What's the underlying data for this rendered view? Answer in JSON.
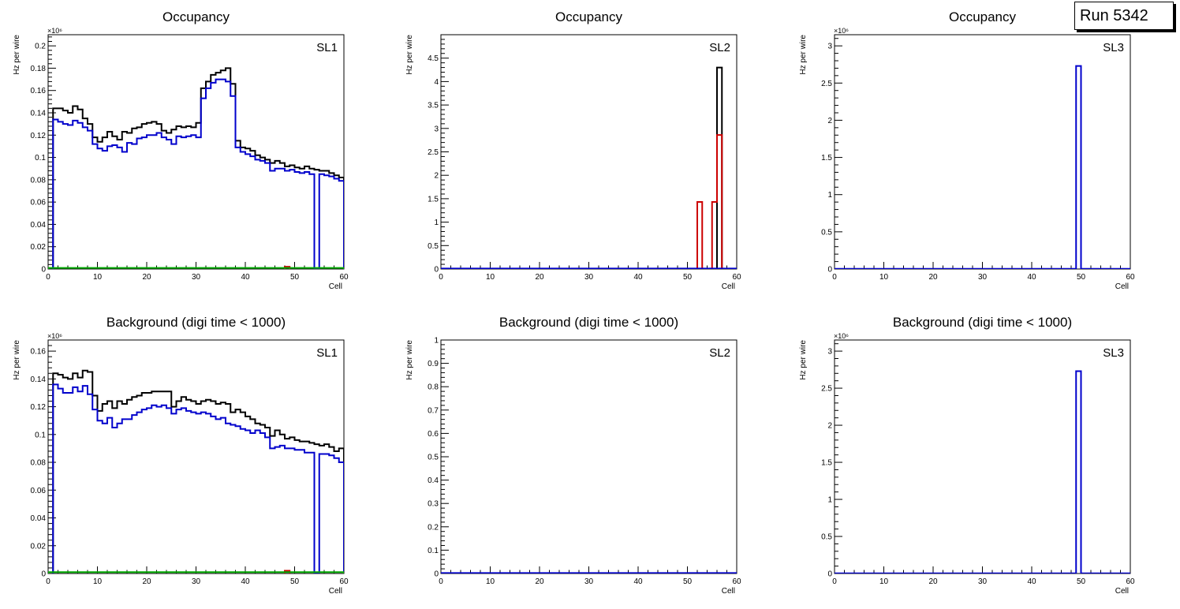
{
  "run_label": "Run 5342",
  "colors": {
    "total": "#000000",
    "blue": "#0000cc",
    "red": "#cc0000",
    "green": "#00aa00"
  },
  "chart_data": [
    {
      "type": "histogram",
      "title": "Occupancy",
      "label": "SL1",
      "xlabel": "Cell",
      "ylabel": "Hz per wire",
      "exponent": "×10⁶",
      "xlim": [
        0,
        60
      ],
      "ylim": [
        0,
        0.21
      ],
      "xticks": [
        "0",
        "10",
        "20",
        "30",
        "40",
        "50",
        "60"
      ],
      "yticks": [
        "0",
        "0.02",
        "0.04",
        "0.06",
        "0.08",
        "0.1",
        "0.12",
        "0.14",
        "0.16",
        "0.18",
        "0.2"
      ],
      "series": [
        {
          "name": "total",
          "color": "#000000",
          "start": 1,
          "values": [
            0.144,
            0.144,
            0.142,
            0.14,
            0.146,
            0.143,
            0.135,
            0.13,
            0.118,
            0.114,
            0.118,
            0.123,
            0.119,
            0.116,
            0.123,
            0.122,
            0.126,
            0.127,
            0.13,
            0.131,
            0.132,
            0.13,
            0.124,
            0.122,
            0.125,
            0.128,
            0.127,
            0.128,
            0.127,
            0.131,
            0.162,
            0.168,
            0.174,
            0.176,
            0.178,
            0.18,
            0.166,
            0.115,
            0.109,
            0.108,
            0.106,
            0.102,
            0.1,
            0.098,
            0.095,
            0.097,
            0.095,
            0.092,
            0.093,
            0.091,
            0.09,
            0.092,
            0.09,
            0.089,
            0.088,
            0.088,
            0.086,
            0.084,
            0.082
          ]
        },
        {
          "name": "blue",
          "color": "#0000cc",
          "start": 1,
          "values": [
            0.134,
            0.132,
            0.13,
            0.129,
            0.133,
            0.131,
            0.127,
            0.124,
            0.112,
            0.108,
            0.106,
            0.11,
            0.111,
            0.109,
            0.105,
            0.113,
            0.112,
            0.117,
            0.118,
            0.12,
            0.12,
            0.122,
            0.118,
            0.116,
            0.112,
            0.119,
            0.118,
            0.119,
            0.12,
            0.118,
            0.153,
            0.162,
            0.167,
            0.17,
            0.17,
            0.168,
            0.155,
            0.109,
            0.105,
            0.103,
            0.101,
            0.098,
            0.097,
            0.095,
            0.088,
            0.09,
            0.09,
            0.088,
            0.089,
            0.087,
            0.086,
            0.087,
            0.085,
            0.0,
            0.085,
            0.084,
            0.083,
            0.081,
            0.079
          ]
        },
        {
          "name": "red",
          "color": "#cc0000",
          "start": 48,
          "values": [
            0.002
          ]
        },
        {
          "name": "green",
          "color": "#00aa00",
          "start": 0,
          "values": [
            0.001,
            0.001,
            0.001,
            0.001,
            0.001,
            0.001,
            0.001,
            0.001,
            0.001,
            0.001,
            0.001,
            0.001,
            0.001,
            0.001,
            0.001,
            0.001,
            0.001,
            0.001,
            0.001,
            0.001,
            0.001,
            0.001,
            0.001,
            0.001,
            0.001,
            0.001,
            0.001,
            0.001,
            0.001,
            0.001,
            0.001,
            0.001,
            0.001,
            0.001,
            0.001,
            0.001,
            0.001,
            0.001,
            0.001,
            0.001,
            0.001,
            0.001,
            0.001,
            0.001,
            0.001,
            0.001,
            0.001,
            0.001,
            0.001,
            0.001,
            0.001,
            0.001,
            0.001,
            0.001,
            0.001,
            0.001,
            0.001,
            0.001,
            0.001,
            0.001
          ]
        }
      ]
    },
    {
      "type": "histogram",
      "title": "Occupancy",
      "label": "SL2",
      "xlabel": "Cell",
      "ylabel": "Hz per wire",
      "exponent": "",
      "xlim": [
        0,
        60
      ],
      "ylim": [
        0,
        5
      ],
      "xticks": [
        "0",
        "10",
        "20",
        "30",
        "40",
        "50",
        "60"
      ],
      "yticks": [
        "0",
        "0.5",
        "1",
        "1.5",
        "2",
        "2.5",
        "3",
        "3.5",
        "4",
        "4.5"
      ],
      "series": [
        {
          "name": "total",
          "color": "#000000",
          "start": 56,
          "values": [
            4.3
          ]
        },
        {
          "name": "red",
          "color": "#cc0000",
          "start": 52,
          "values": [
            1.43,
            0,
            0,
            1.43,
            2.86
          ]
        },
        {
          "name": "blue",
          "color": "#0000cc",
          "start": 0,
          "values": [
            0.01,
            0.01,
            0.01,
            0.01,
            0.01,
            0.01,
            0.01,
            0.01,
            0.01,
            0.01,
            0.01,
            0.01,
            0.01,
            0.01,
            0.01,
            0.01,
            0.01,
            0.01,
            0.01,
            0.01,
            0.01,
            0.01,
            0.01,
            0.01,
            0.01,
            0.01,
            0.01,
            0.01,
            0.01,
            0.01,
            0.01,
            0.01,
            0.01,
            0.01,
            0.01,
            0.01,
            0.01,
            0.01,
            0.01,
            0.01,
            0.01,
            0.01,
            0.01,
            0.01,
            0.01,
            0.01,
            0.01,
            0.01,
            0.01,
            0.01,
            0.01,
            0.01,
            0.01,
            0.01,
            0.01,
            0.01,
            0.01,
            0.01,
            0.01,
            0.01
          ]
        }
      ]
    },
    {
      "type": "histogram",
      "title": "Occupancy",
      "label": "SL3",
      "xlabel": "Cell",
      "ylabel": "Hz per wire",
      "exponent": "×10⁶",
      "xlim": [
        0,
        60
      ],
      "ylim": [
        0,
        3.15
      ],
      "xticks": [
        "0",
        "10",
        "20",
        "30",
        "40",
        "50",
        "60"
      ],
      "yticks": [
        "0",
        "0.5",
        "1",
        "1.5",
        "2",
        "2.5",
        "3"
      ],
      "series": [
        {
          "name": "blue",
          "color": "#0000cc",
          "start": 0,
          "values": [
            0.003,
            0.003,
            0.003,
            0.003,
            0.003,
            0.003,
            0.003,
            0.003,
            0.003,
            0.003,
            0.003,
            0.003,
            0.003,
            0.003,
            0.003,
            0.003,
            0.003,
            0.003,
            0.003,
            0.003,
            0.003,
            0.003,
            0.003,
            0.003,
            0.003,
            0.003,
            0.003,
            0.003,
            0.003,
            0.003,
            0.003,
            0.003,
            0.003,
            0.003,
            0.003,
            0.003,
            0.003,
            0.003,
            0.003,
            0.003,
            0.003,
            0.003,
            0.003,
            0.003,
            0.003,
            0.003,
            0.003,
            0.003,
            0.003,
            2.73,
            0.003,
            0.003,
            0.003,
            0.003,
            0.003,
            0.003,
            0.003,
            0.003,
            0.003,
            0.003
          ]
        }
      ]
    },
    {
      "type": "histogram",
      "title": "Background (digi time < 1000)",
      "label": "SL1",
      "xlabel": "Cell",
      "ylabel": "Hz per wire",
      "exponent": "×10⁶",
      "xlim": [
        0,
        60
      ],
      "ylim": [
        0,
        0.168
      ],
      "xticks": [
        "0",
        "10",
        "20",
        "30",
        "40",
        "50",
        "60"
      ],
      "yticks": [
        "0",
        "0.02",
        "0.04",
        "0.06",
        "0.08",
        "0.1",
        "0.12",
        "0.14",
        "0.16"
      ],
      "series": [
        {
          "name": "total",
          "color": "#000000",
          "start": 1,
          "values": [
            0.144,
            0.143,
            0.141,
            0.14,
            0.144,
            0.141,
            0.146,
            0.145,
            0.128,
            0.117,
            0.122,
            0.124,
            0.119,
            0.124,
            0.122,
            0.125,
            0.127,
            0.128,
            0.13,
            0.13,
            0.131,
            0.131,
            0.131,
            0.131,
            0.12,
            0.124,
            0.127,
            0.125,
            0.124,
            0.122,
            0.124,
            0.125,
            0.124,
            0.122,
            0.123,
            0.122,
            0.116,
            0.118,
            0.116,
            0.113,
            0.111,
            0.108,
            0.107,
            0.105,
            0.099,
            0.103,
            0.1,
            0.097,
            0.098,
            0.096,
            0.095,
            0.095,
            0.094,
            0.093,
            0.092,
            0.093,
            0.091,
            0.088,
            0.09
          ]
        },
        {
          "name": "blue",
          "color": "#0000cc",
          "start": 1,
          "values": [
            0.136,
            0.133,
            0.13,
            0.13,
            0.134,
            0.131,
            0.135,
            0.129,
            0.118,
            0.11,
            0.108,
            0.112,
            0.105,
            0.108,
            0.111,
            0.111,
            0.114,
            0.116,
            0.118,
            0.119,
            0.121,
            0.12,
            0.121,
            0.119,
            0.115,
            0.118,
            0.119,
            0.117,
            0.116,
            0.115,
            0.116,
            0.115,
            0.113,
            0.111,
            0.112,
            0.108,
            0.107,
            0.106,
            0.104,
            0.103,
            0.101,
            0.103,
            0.101,
            0.098,
            0.09,
            0.091,
            0.092,
            0.09,
            0.09,
            0.089,
            0.089,
            0.087,
            0.087,
            0.0,
            0.086,
            0.086,
            0.085,
            0.083,
            0.08
          ]
        },
        {
          "name": "red",
          "color": "#cc0000",
          "start": 48,
          "values": [
            0.002
          ]
        },
        {
          "name": "green",
          "color": "#00aa00",
          "start": 0,
          "values": [
            0.001,
            0.001,
            0.001,
            0.001,
            0.001,
            0.001,
            0.001,
            0.001,
            0.001,
            0.001,
            0.001,
            0.001,
            0.001,
            0.001,
            0.001,
            0.001,
            0.001,
            0.001,
            0.001,
            0.001,
            0.001,
            0.001,
            0.001,
            0.001,
            0.001,
            0.001,
            0.001,
            0.001,
            0.001,
            0.001,
            0.001,
            0.001,
            0.001,
            0.001,
            0.001,
            0.001,
            0.001,
            0.001,
            0.001,
            0.001,
            0.001,
            0.001,
            0.001,
            0.001,
            0.001,
            0.001,
            0.001,
            0.001,
            0.001,
            0.001,
            0.001,
            0.001,
            0.001,
            0.001,
            0.001,
            0.001,
            0.001,
            0.001,
            0.001,
            0.001
          ]
        }
      ]
    },
    {
      "type": "histogram",
      "title": "Background (digi time < 1000)",
      "label": "SL2",
      "xlabel": "Cell",
      "ylabel": "Hz per wire",
      "exponent": "",
      "xlim": [
        0,
        60
      ],
      "ylim": [
        0,
        1
      ],
      "xticks": [
        "0",
        "10",
        "20",
        "30",
        "40",
        "50",
        "60"
      ],
      "yticks": [
        "0",
        "0.1",
        "0.2",
        "0.3",
        "0.4",
        "0.5",
        "0.6",
        "0.7",
        "0.8",
        "0.9",
        "1"
      ],
      "series": [
        {
          "name": "blue",
          "color": "#0000cc",
          "start": 0,
          "values": [
            0.002,
            0.002,
            0.002,
            0.002,
            0.002,
            0.002,
            0.002,
            0.002,
            0.002,
            0.002,
            0.002,
            0.002,
            0.002,
            0.002,
            0.002,
            0.002,
            0.002,
            0.002,
            0.002,
            0.002,
            0.002,
            0.002,
            0.002,
            0.002,
            0.002,
            0.002,
            0.002,
            0.002,
            0.002,
            0.002,
            0.002,
            0.002,
            0.002,
            0.002,
            0.002,
            0.002,
            0.002,
            0.002,
            0.002,
            0.002,
            0.002,
            0.002,
            0.002,
            0.002,
            0.002,
            0.002,
            0.002,
            0.002,
            0.002,
            0.002,
            0.002,
            0.002,
            0.002,
            0.002,
            0.002,
            0.002,
            0.002,
            0.002,
            0.002,
            0.002
          ]
        }
      ]
    },
    {
      "type": "histogram",
      "title": "Background (digi time < 1000)",
      "label": "SL3",
      "xlabel": "Cell",
      "ylabel": "Hz per wire",
      "exponent": "×10⁶",
      "xlim": [
        0,
        60
      ],
      "ylim": [
        0,
        3.15
      ],
      "xticks": [
        "0",
        "10",
        "20",
        "30",
        "40",
        "50",
        "60"
      ],
      "yticks": [
        "0",
        "0.5",
        "1",
        "1.5",
        "2",
        "2.5",
        "3"
      ],
      "series": [
        {
          "name": "blue",
          "color": "#0000cc",
          "start": 0,
          "values": [
            0.003,
            0.003,
            0.003,
            0.003,
            0.003,
            0.003,
            0.003,
            0.003,
            0.003,
            0.003,
            0.003,
            0.003,
            0.003,
            0.003,
            0.003,
            0.003,
            0.003,
            0.003,
            0.003,
            0.003,
            0.003,
            0.003,
            0.003,
            0.003,
            0.003,
            0.003,
            0.003,
            0.003,
            0.003,
            0.003,
            0.003,
            0.003,
            0.003,
            0.003,
            0.003,
            0.003,
            0.003,
            0.003,
            0.003,
            0.003,
            0.003,
            0.003,
            0.003,
            0.003,
            0.003,
            0.003,
            0.003,
            0.003,
            0.003,
            2.73,
            0.003,
            0.003,
            0.003,
            0.003,
            0.003,
            0.003,
            0.003,
            0.003,
            0.003,
            0.003
          ]
        }
      ]
    }
  ]
}
